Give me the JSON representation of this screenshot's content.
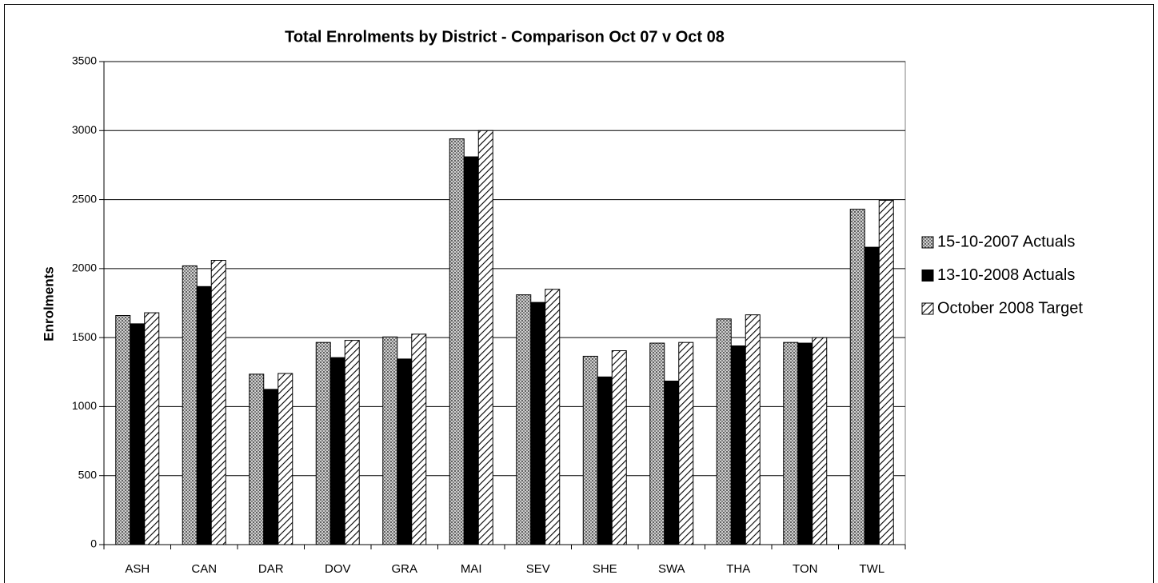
{
  "chart_data": {
    "type": "bar",
    "title": "Total Enrolments by District - Comparison Oct 07 v Oct 08",
    "y_label": "Enrolments",
    "categories": [
      "ASH",
      "CAN",
      "DAR",
      "DOV",
      "GRA",
      "MAI",
      "SEV",
      "SHE",
      "SWA",
      "THA",
      "TON",
      "TWL"
    ],
    "series": [
      {
        "name": "15-10-2007 Actuals",
        "color": "#a0a0a0",
        "pattern": "dots",
        "values": [
          1660,
          2020,
          1235,
          1465,
          1505,
          2940,
          1810,
          1365,
          1460,
          1635,
          1465,
          2430
        ]
      },
      {
        "name": "13-10-2008 Actuals",
        "color": "#000000",
        "pattern": "solid",
        "values": [
          1600,
          1870,
          1125,
          1355,
          1345,
          2810,
          1755,
          1215,
          1185,
          1440,
          1460,
          2155
        ]
      },
      {
        "name": "October 2008 Target",
        "color": "#000000",
        "pattern": "hatch",
        "values": [
          1680,
          2060,
          1240,
          1480,
          1525,
          3000,
          1850,
          1405,
          1465,
          1665,
          1500,
          2495
        ]
      }
    ],
    "ylim": [
      0,
      3500
    ],
    "yticks": [
      0,
      500,
      1000,
      1500,
      2000,
      2500,
      3000,
      3500
    ],
    "grid": true,
    "legend": "right"
  }
}
